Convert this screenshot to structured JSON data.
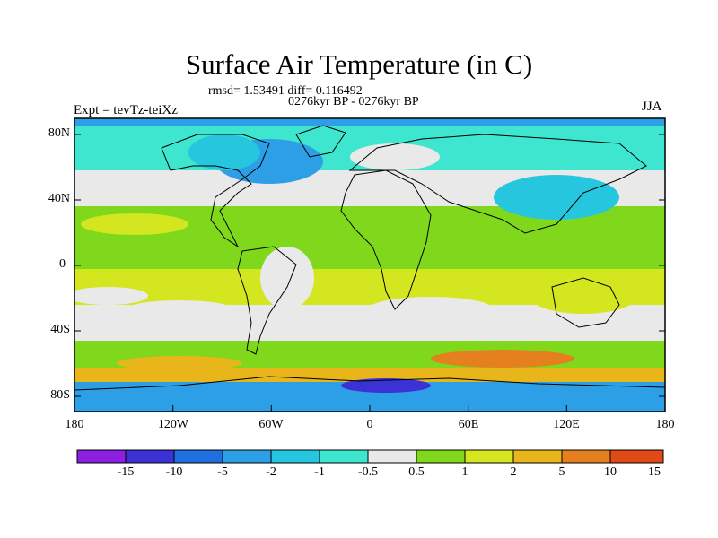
{
  "title": "Surface Air Temperature (in C)",
  "stats_line": "rmsd= 1.53491 diff= 0.116492",
  "period_line": "0276kyr BP - 0276kyr BP",
  "experiment": "Expt = tevTz-teiXz",
  "season": "JJA",
  "y_ticks": [
    "80N",
    "40N",
    "0",
    "40S",
    "80S"
  ],
  "x_ticks": [
    "180",
    "120W",
    "60W",
    "0",
    "60E",
    "120E",
    "180"
  ],
  "colorbar": {
    "labels": [
      "-15",
      "-10",
      "-5",
      "-2",
      "-1",
      "-0.5",
      "0.5",
      "1",
      "2",
      "5",
      "10",
      "15"
    ],
    "colors": [
      "#8c1fe0",
      "#3b32d6",
      "#1f6fe0",
      "#2c9fe6",
      "#27c6df",
      "#3ee6cf",
      "#e9e9e9",
      "#7fd81c",
      "#d3e61f",
      "#e8b51b",
      "#e6801f",
      "#e04a16"
    ]
  },
  "colors": {
    "land_outline": "#000000",
    "ocean_neutral": "#e9e9e9"
  }
}
